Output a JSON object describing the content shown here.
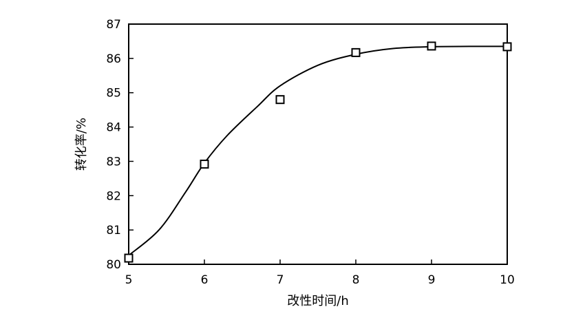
{
  "chart_data": {
    "type": "scatter",
    "xlabel": "改性时间/h",
    "ylabel": "转化率/%",
    "xlim": [
      5,
      10
    ],
    "ylim": [
      80,
      87
    ],
    "x_ticks": [
      5,
      6,
      7,
      8,
      9,
      10
    ],
    "y_ticks": [
      80,
      81,
      82,
      83,
      84,
      85,
      86,
      87
    ],
    "grid": false,
    "series": [
      {
        "marker": "open-square",
        "points": [
          {
            "x": 5,
            "y": 80.18
          },
          {
            "x": 6,
            "y": 82.92
          },
          {
            "x": 7,
            "y": 84.8
          },
          {
            "x": 8,
            "y": 86.17
          },
          {
            "x": 9,
            "y": 86.36
          },
          {
            "x": 10,
            "y": 86.34
          }
        ]
      },
      {
        "type": "line",
        "style": "smooth fitted curve",
        "points": [
          {
            "x": 5,
            "y": 80.26
          },
          {
            "x": 5.4,
            "y": 81.0
          },
          {
            "x": 5.75,
            "y": 82.1
          },
          {
            "x": 6,
            "y": 82.95
          },
          {
            "x": 6.3,
            "y": 83.75
          },
          {
            "x": 6.7,
            "y": 84.6
          },
          {
            "x": 7,
            "y": 85.2
          },
          {
            "x": 7.5,
            "y": 85.8
          },
          {
            "x": 8,
            "y": 86.12
          },
          {
            "x": 8.5,
            "y": 86.29
          },
          {
            "x": 9,
            "y": 86.34
          },
          {
            "x": 9.5,
            "y": 86.35
          },
          {
            "x": 10,
            "y": 86.35
          }
        ]
      }
    ]
  }
}
